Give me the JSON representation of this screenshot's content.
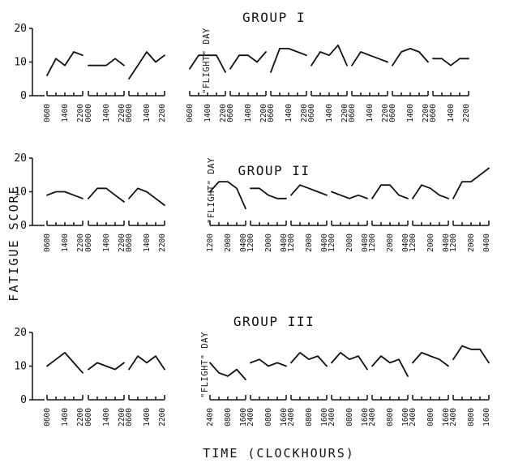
{
  "chart_data": {
    "type": "line",
    "ylabel": "FATIGUE SCORE",
    "xlabel": "TIME (CLOCKHOURS)",
    "ylim": [
      0,
      20
    ],
    "yticks": [
      "0",
      "10",
      "20"
    ],
    "flight_label": "\"FLIGHT\" DAY",
    "panels": [
      {
        "title": "GROUP I",
        "tick_labels": [
          "0600",
          "1400",
          "2200"
        ],
        "days": [
          [
            6,
            11,
            9,
            13,
            12
          ],
          [
            9,
            9,
            9,
            11,
            9
          ],
          [
            5,
            9,
            13,
            10,
            12
          ],
          [
            8,
            12,
            12,
            12,
            7
          ],
          [
            8,
            12,
            12,
            10,
            13
          ],
          [
            7,
            14,
            14,
            13,
            12
          ],
          [
            9,
            13,
            12,
            15,
            9
          ],
          [
            9,
            13,
            12,
            11,
            10
          ],
          [
            9,
            13,
            14,
            13,
            10
          ],
          [
            11,
            11,
            9,
            11,
            11
          ]
        ]
      },
      {
        "title": "GROUP II",
        "tick_labels_pre": [
          "0600",
          "1400",
          "2200"
        ],
        "tick_labels_post": [
          "1200",
          "2000",
          "0400"
        ],
        "days": [
          [
            9,
            10,
            10,
            9,
            8
          ],
          [
            8,
            11,
            11,
            9,
            7
          ],
          [
            8,
            11,
            10,
            8,
            6
          ],
          [
            10,
            13,
            13,
            11,
            5
          ],
          [
            11,
            11,
            9,
            8,
            8
          ],
          [
            9,
            12,
            11,
            10,
            9
          ],
          [
            10,
            9,
            8,
            9,
            8
          ],
          [
            8,
            12,
            12,
            9,
            8
          ],
          [
            8,
            12,
            11,
            9,
            8
          ],
          [
            8,
            13,
            13,
            15,
            17
          ]
        ]
      },
      {
        "title": "GROUP III",
        "tick_labels_pre": [
          "0600",
          "1400",
          "2200"
        ],
        "tick_labels_post": [
          "2400",
          "0800",
          "1600"
        ],
        "days": [
          [
            10,
            12,
            14,
            11,
            8
          ],
          [
            9,
            11,
            10,
            9,
            11
          ],
          [
            9,
            13,
            11,
            13,
            9
          ],
          [
            11,
            8,
            7,
            9,
            6
          ],
          [
            11,
            12,
            10,
            11,
            10
          ],
          [
            11,
            14,
            12,
            13,
            10
          ],
          [
            11,
            14,
            12,
            13,
            9
          ],
          [
            10,
            13,
            11,
            12,
            7
          ],
          [
            11,
            14,
            13,
            12,
            10
          ],
          [
            12,
            16,
            15,
            15,
            11
          ]
        ]
      }
    ]
  }
}
